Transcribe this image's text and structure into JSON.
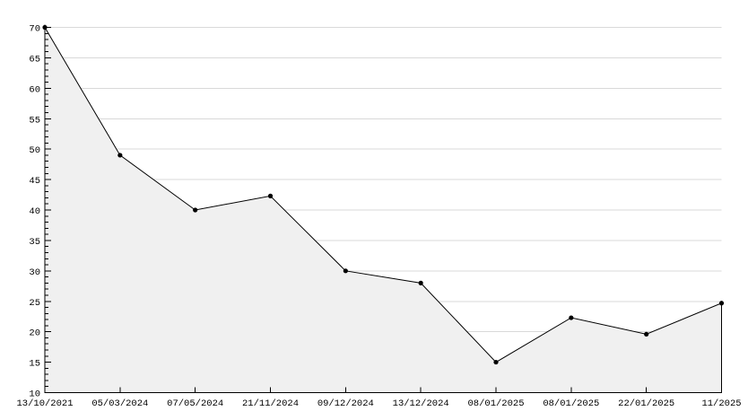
{
  "chart_data": {
    "type": "area",
    "title": "",
    "xlabel": "",
    "ylabel": "",
    "x_labels": [
      "13/10/2021",
      "05/03/2024",
      "07/05/2024",
      "21/11/2024",
      "09/12/2024",
      "13/12/2024",
      "08/01/2025",
      "08/01/2025",
      "22/01/2025",
      "11/2025"
    ],
    "values": [
      70,
      49,
      40,
      42.3,
      30,
      28,
      15,
      22.3,
      19.6,
      24.7
    ],
    "ylim": [
      10,
      70
    ],
    "y_ticks": [
      10,
      15,
      20,
      25,
      30,
      35,
      40,
      45,
      50,
      55,
      60,
      65,
      70
    ],
    "y_minor_tick_step": 1,
    "grid": "horizontal",
    "legend": "none",
    "marker": "dot",
    "colors": {
      "line": "#000000",
      "marker": "#000000",
      "fill": "#f0f0f0",
      "grid": "#d9d9d9",
      "axis": "#000000",
      "text": "#000000",
      "background": "#ffffff"
    }
  }
}
